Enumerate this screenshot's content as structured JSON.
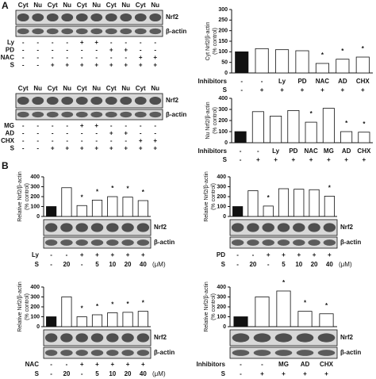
{
  "panels": [
    "A",
    "B"
  ],
  "blots": [
    {
      "lanes": [
        "Cyt",
        "Nu",
        "Cyt",
        "Nu",
        "Cyt",
        "Nu",
        "Cyt",
        "Nu",
        "Cyt",
        "Nu"
      ],
      "bands": [
        "Nrf2",
        "β-actin"
      ],
      "rows": [
        {
          "label": "Ly",
          "values": [
            "-",
            "-",
            "-",
            "-",
            "+",
            "+",
            "-",
            "-",
            "-",
            "-"
          ]
        },
        {
          "label": "PD",
          "values": [
            "-",
            "-",
            "-",
            "-",
            "-",
            "-",
            "+",
            "+",
            "-",
            "-"
          ]
        },
        {
          "label": "NAC",
          "values": [
            "-",
            "-",
            "-",
            "-",
            "-",
            "-",
            "-",
            "-",
            "+",
            "+"
          ]
        },
        {
          "label": "S",
          "values": [
            "-",
            "-",
            "+",
            "+",
            "+",
            "+",
            "+",
            "+",
            "+",
            "+"
          ]
        }
      ]
    },
    {
      "lanes": [
        "Cyt",
        "Nu",
        "Cyt",
        "Nu",
        "Cyt",
        "Nu",
        "Cyt",
        "Nu",
        "Cyt",
        "Nu"
      ],
      "bands": [
        "Nrf2",
        "β-actin"
      ],
      "rows": [
        {
          "label": "MG",
          "values": [
            "-",
            "-",
            "-",
            "-",
            "+",
            "+",
            "-",
            "-",
            "-",
            "-"
          ]
        },
        {
          "label": "AD",
          "values": [
            "-",
            "-",
            "-",
            "-",
            "-",
            "-",
            "+",
            "+",
            "-",
            "-"
          ]
        },
        {
          "label": "CHX",
          "values": [
            "-",
            "-",
            "-",
            "-",
            "-",
            "-",
            "-",
            "-",
            "+",
            "+"
          ]
        },
        {
          "label": "S",
          "values": [
            "-",
            "-",
            "+",
            "+",
            "+",
            "+",
            "+",
            "+",
            "+",
            "+"
          ]
        }
      ]
    }
  ],
  "chart_data": [
    {
      "type": "bar",
      "ylabel": [
        "Cyt Nrf2/β-actin",
        "(% control)"
      ],
      "ylim": [
        0,
        300
      ],
      "yticks": [
        0,
        50,
        100,
        150,
        200,
        250,
        300
      ],
      "values": [
        100,
        115,
        110,
        105,
        45,
        65,
        75
      ],
      "stars": [
        null,
        null,
        null,
        null,
        "*",
        "*",
        "*"
      ],
      "colors": [
        "#111111",
        "#ffffff",
        "#ffffff",
        "#ffffff",
        "#ffffff",
        "#ffffff",
        "#ffffff"
      ],
      "rows": [
        {
          "label": "Inhibitors",
          "values": [
            "-",
            "-",
            "Ly",
            "PD",
            "NAC",
            "AD",
            "CHX"
          ]
        },
        {
          "label": "S",
          "values": [
            "-",
            "+",
            "+",
            "+",
            "+",
            "+",
            "+"
          ]
        }
      ]
    },
    {
      "type": "bar",
      "ylabel": [
        "Nu Nrf2/β-actin",
        "(% control)"
      ],
      "ylim": [
        0,
        400
      ],
      "yticks": [
        0,
        100,
        200,
        300,
        400
      ],
      "values": [
        100,
        280,
        240,
        290,
        185,
        310,
        100,
        95
      ],
      "stars": [
        null,
        null,
        null,
        null,
        "*",
        null,
        "*",
        "*"
      ],
      "colors": [
        "#111111",
        "#ffffff",
        "#ffffff",
        "#ffffff",
        "#ffffff",
        "#ffffff",
        "#ffffff",
        "#ffffff"
      ],
      "rows": [
        {
          "label": "Inhibitors",
          "values": [
            "-",
            "-",
            "Ly",
            "PD",
            "NAC",
            "MG",
            "AD",
            "CHX"
          ]
        },
        {
          "label": "S",
          "values": [
            "-",
            "+",
            "+",
            "+",
            "+",
            "+",
            "+",
            "+"
          ]
        }
      ]
    },
    {
      "type": "bar",
      "ylabel": [
        "Relative Nrf2/β-actin",
        "(% control)"
      ],
      "ylim": [
        0,
        400
      ],
      "yticks": [
        0,
        100,
        200,
        300,
        400
      ],
      "values": [
        100,
        290,
        110,
        165,
        200,
        195,
        160
      ],
      "stars": [
        null,
        null,
        "*",
        "*",
        "*",
        "*",
        "*"
      ],
      "colors": [
        "#111111",
        "#ffffff",
        "#ffffff",
        "#ffffff",
        "#ffffff",
        "#ffffff",
        "#ffffff"
      ],
      "bands": [
        "Nrf2",
        "β-actin"
      ],
      "unit": "(μM)",
      "rows": [
        {
          "label": "Ly",
          "values": [
            "-",
            "-",
            "+",
            "+",
            "+",
            "+",
            "+"
          ]
        },
        {
          "label": "S",
          "values": [
            "-",
            "20",
            "-",
            "5",
            "10",
            "20",
            "40"
          ]
        }
      ]
    },
    {
      "type": "bar",
      "ylabel": [
        "Relative Nrf2/β-actin",
        "(% control)"
      ],
      "ylim": [
        0,
        400
      ],
      "yticks": [
        0,
        100,
        200,
        300,
        400
      ],
      "values": [
        100,
        260,
        105,
        280,
        275,
        270,
        205
      ],
      "stars": [
        null,
        null,
        "*",
        null,
        null,
        null,
        "*"
      ],
      "colors": [
        "#111111",
        "#ffffff",
        "#ffffff",
        "#ffffff",
        "#ffffff",
        "#ffffff",
        "#ffffff"
      ],
      "bands": [
        "Nrf2",
        "β-actin"
      ],
      "unit": "(μM)",
      "rows": [
        {
          "label": "PD",
          "values": [
            "-",
            "-",
            "+",
            "+",
            "+",
            "+",
            "+"
          ]
        },
        {
          "label": "S",
          "values": [
            "-",
            "20",
            "-",
            "5",
            "10",
            "20",
            "40"
          ]
        }
      ]
    },
    {
      "type": "bar",
      "ylabel": [
        "Relative Nrf2/β-actin",
        "(% control)"
      ],
      "ylim": [
        0,
        400
      ],
      "yticks": [
        0,
        100,
        200,
        300,
        400
      ],
      "values": [
        100,
        300,
        100,
        120,
        140,
        145,
        155
      ],
      "stars": [
        null,
        null,
        "*",
        "*",
        "*",
        "*",
        "*"
      ],
      "colors": [
        "#111111",
        "#ffffff",
        "#ffffff",
        "#ffffff",
        "#ffffff",
        "#ffffff",
        "#ffffff"
      ],
      "bands": [
        "Nrf2",
        "β-actin"
      ],
      "unit": "(μM)",
      "rows": [
        {
          "label": "NAC",
          "values": [
            "-",
            "-",
            "+",
            "+",
            "+",
            "+",
            "+"
          ]
        },
        {
          "label": "S",
          "values": [
            "-",
            "20",
            "-",
            "5",
            "10",
            "20",
            "40"
          ]
        }
      ]
    },
    {
      "type": "bar",
      "ylabel": [
        "Relative Nrf2/β-actin",
        "(% control)"
      ],
      "ylim": [
        0,
        400
      ],
      "yticks": [
        0,
        100,
        200,
        300,
        400
      ],
      "values": [
        100,
        300,
        360,
        155,
        130
      ],
      "stars": [
        null,
        null,
        "*",
        "*",
        "*"
      ],
      "colors": [
        "#111111",
        "#ffffff",
        "#ffffff",
        "#ffffff",
        "#ffffff"
      ],
      "bands": [
        "Nrf2",
        "β-actin"
      ],
      "rows": [
        {
          "label": "Inhibitors",
          "values": [
            "-",
            "-",
            "MG",
            "AD",
            "CHX"
          ]
        },
        {
          "label": "S",
          "values": [
            "-",
            "+",
            "+",
            "+",
            "+"
          ]
        }
      ]
    }
  ]
}
